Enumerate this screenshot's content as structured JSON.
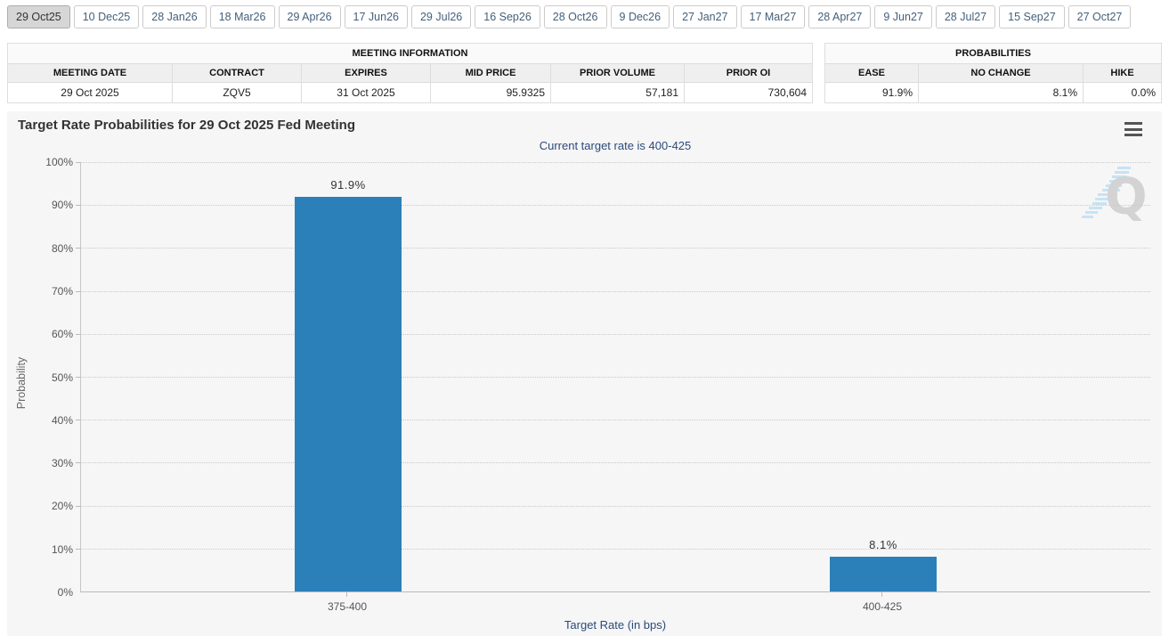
{
  "tabs": {
    "selected_index": 0,
    "items": [
      "29 Oct25",
      "10 Dec25",
      "28 Jan26",
      "18 Mar26",
      "29 Apr26",
      "17 Jun26",
      "29 Jul26",
      "16 Sep26",
      "28 Oct26",
      "9 Dec26",
      "27 Jan27",
      "17 Mar27",
      "28 Apr27",
      "9 Jun27",
      "28 Jul27",
      "15 Sep27",
      "27 Oct27"
    ]
  },
  "meeting_info": {
    "title": "MEETING INFORMATION",
    "columns": [
      "MEETING DATE",
      "CONTRACT",
      "EXPIRES",
      "MID PRICE",
      "PRIOR VOLUME",
      "PRIOR OI"
    ],
    "row": [
      "29 Oct 2025",
      "ZQV5",
      "31 Oct 2025",
      "95.9325",
      "57,181",
      "730,604"
    ]
  },
  "probabilities": {
    "title": "PROBABILITIES",
    "columns": [
      "EASE",
      "NO CHANGE",
      "HIKE"
    ],
    "row": [
      "91.9%",
      "8.1%",
      "0.0%"
    ]
  },
  "chart": {
    "title": "Target Rate Probabilities for 29 Oct 2025 Fed Meeting",
    "subtitle": "Current target rate is 400-425",
    "menu_icon": "hamburger-menu-icon",
    "watermark_icon": "quikstrike-q-logo",
    "yticks": [
      "100%",
      "90%",
      "80%",
      "70%",
      "60%",
      "50%",
      "40%",
      "30%",
      "20%",
      "10%",
      "0%"
    ]
  },
  "chart_data": {
    "type": "bar",
    "categories": [
      "375-400",
      "400-425"
    ],
    "values": [
      91.9,
      8.1
    ],
    "data_labels": [
      "91.9%",
      "8.1%"
    ],
    "title": "Target Rate Probabilities for 29 Oct 2025 Fed Meeting",
    "subtitle": "Current target rate is 400-425",
    "xlabel": "Target Rate (in bps)",
    "ylabel": "Probability",
    "ylim": [
      0,
      100
    ],
    "ytick_step": 10,
    "grid": "dotted-horizontal",
    "legend": "none",
    "bar_color": "#2b80b9"
  },
  "colors": {
    "bar": "#2b80b9",
    "axis_title": "#2b4a78",
    "chart_bg": "#f6f6f7",
    "selected_tab_bg": "#d6d6d6",
    "tab_text": "#44607b"
  }
}
